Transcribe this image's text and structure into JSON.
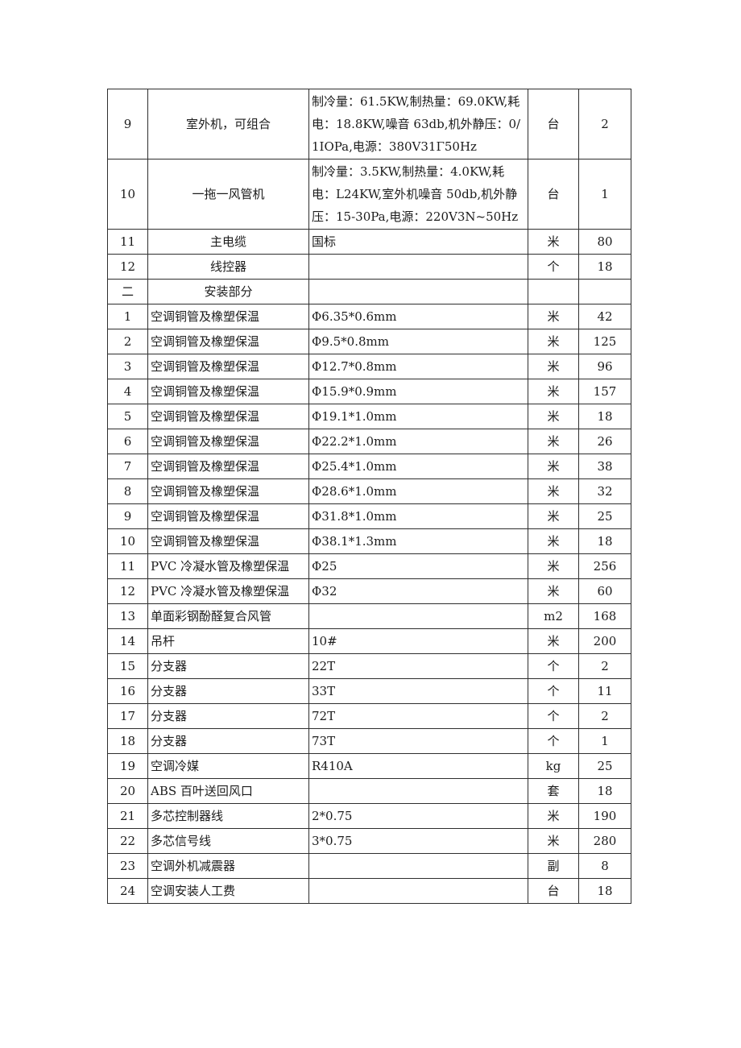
{
  "table": {
    "rows": [
      {
        "group": 1,
        "no": "9",
        "name": "室外机，可组合",
        "spec": "制冷量：61.5KW,制热量：69.0KW,耗电：18.8KW,噪音 63db,机外静压：0/1IOPa,电源：380V31Γ50Hz",
        "unit": "台",
        "qty": "2"
      },
      {
        "group": 1,
        "no": "10",
        "name": "一拖一风管机",
        "spec": "制冷量：3.5KW,制热量：4.0KW,耗电：L24KW,室外机噪音 50db,机外静压：15-30Pa,电源：220V3N~50Hz",
        "unit": "台",
        "qty": "1"
      },
      {
        "group": 1,
        "no": "11",
        "name": "主电缆",
        "spec": "国标",
        "unit": "米",
        "qty": "80"
      },
      {
        "group": 1,
        "no": "12",
        "name": "线控器",
        "spec": "",
        "unit": "个",
        "qty": "18"
      },
      {
        "group": 1,
        "no": "二",
        "name": "安装部分",
        "spec": "",
        "unit": "",
        "qty": "",
        "section_header": true
      },
      {
        "group": 2,
        "no": "1",
        "name": "空调铜管及橡塑保温",
        "spec": "Φ6.35*0.6mm",
        "unit": "米",
        "qty": "42"
      },
      {
        "group": 2,
        "no": "2",
        "name": "空调铜管及橡塑保温",
        "spec": "Φ9.5*0.8mm",
        "unit": "米",
        "qty": "125"
      },
      {
        "group": 2,
        "no": "3",
        "name": "空调铜管及橡塑保温",
        "spec": "Φ12.7*0.8mm",
        "unit": "米",
        "qty": "96"
      },
      {
        "group": 2,
        "no": "4",
        "name": "空调铜管及橡塑保温",
        "spec": "Φ15.9*0.9mm",
        "unit": "米",
        "qty": "157"
      },
      {
        "group": 2,
        "no": "5",
        "name": "空调铜管及橡塑保温",
        "spec": "Φ19.1*1.0mm",
        "unit": "米",
        "qty": "18"
      },
      {
        "group": 2,
        "no": "6",
        "name": "空调铜管及橡塑保温",
        "spec": "Φ22.2*1.0mm",
        "unit": "米",
        "qty": "26"
      },
      {
        "group": 2,
        "no": "7",
        "name": "空调铜管及橡塑保温",
        "spec": "Φ25.4*1.0mm",
        "unit": "米",
        "qty": "38"
      },
      {
        "group": 2,
        "no": "8",
        "name": "空调铜管及橡塑保温",
        "spec": "Φ28.6*1.0mm",
        "unit": "米",
        "qty": "32"
      },
      {
        "group": 2,
        "no": "9",
        "name": "空调铜管及橡塑保温",
        "spec": "Φ31.8*1.0mm",
        "unit": "米",
        "qty": "25"
      },
      {
        "group": 2,
        "no": "10",
        "name": "空调铜管及橡塑保温",
        "spec": "Φ38.1*1.3mm",
        "unit": "米",
        "qty": "18"
      },
      {
        "group": 2,
        "no": "11",
        "name": "PVC 冷凝水管及橡塑保温",
        "spec": "Φ25",
        "unit": "米",
        "qty": "256"
      },
      {
        "group": 2,
        "no": "12",
        "name": "PVC 冷凝水管及橡塑保温",
        "spec": "Φ32",
        "unit": "米",
        "qty": "60"
      },
      {
        "group": 2,
        "no": "13",
        "name": "单面彩钢酚醛复合风管",
        "spec": "",
        "unit": "m2",
        "qty": "168"
      },
      {
        "group": 2,
        "no": "14",
        "name": "吊杆",
        "spec": "10#",
        "unit": "米",
        "qty": "200"
      },
      {
        "group": 2,
        "no": "15",
        "name": "分支器",
        "spec": "22T",
        "unit": "个",
        "qty": "2"
      },
      {
        "group": 2,
        "no": "16",
        "name": "分支器",
        "spec": "33T",
        "unit": "个",
        "qty": "11"
      },
      {
        "group": 2,
        "no": "17",
        "name": "分支器",
        "spec": "72T",
        "unit": "个",
        "qty": "2"
      },
      {
        "group": 2,
        "no": "18",
        "name": "分支器",
        "spec": "73T",
        "unit": "个",
        "qty": "1"
      },
      {
        "group": 2,
        "no": "19",
        "name": "空调冷媒",
        "spec": "R410A",
        "unit": "kg",
        "qty": "25"
      },
      {
        "group": 2,
        "no": "20",
        "name": "ABS 百叶送回风口",
        "spec": "",
        "unit": "套",
        "qty": "18"
      },
      {
        "group": 2,
        "no": "21",
        "name": "多芯控制器线",
        "spec": "2*0.75",
        "unit": "米",
        "qty": "190"
      },
      {
        "group": 2,
        "no": "22",
        "name": "多芯信号线",
        "spec": "3*0.75",
        "unit": "米",
        "qty": "280"
      },
      {
        "group": 2,
        "no": "23",
        "name": "空调外机减震器",
        "spec": "",
        "unit": "副",
        "qty": "8"
      },
      {
        "group": 2,
        "no": "24",
        "name": "空调安装人工费",
        "spec": "",
        "unit": "台",
        "qty": "18"
      }
    ]
  }
}
